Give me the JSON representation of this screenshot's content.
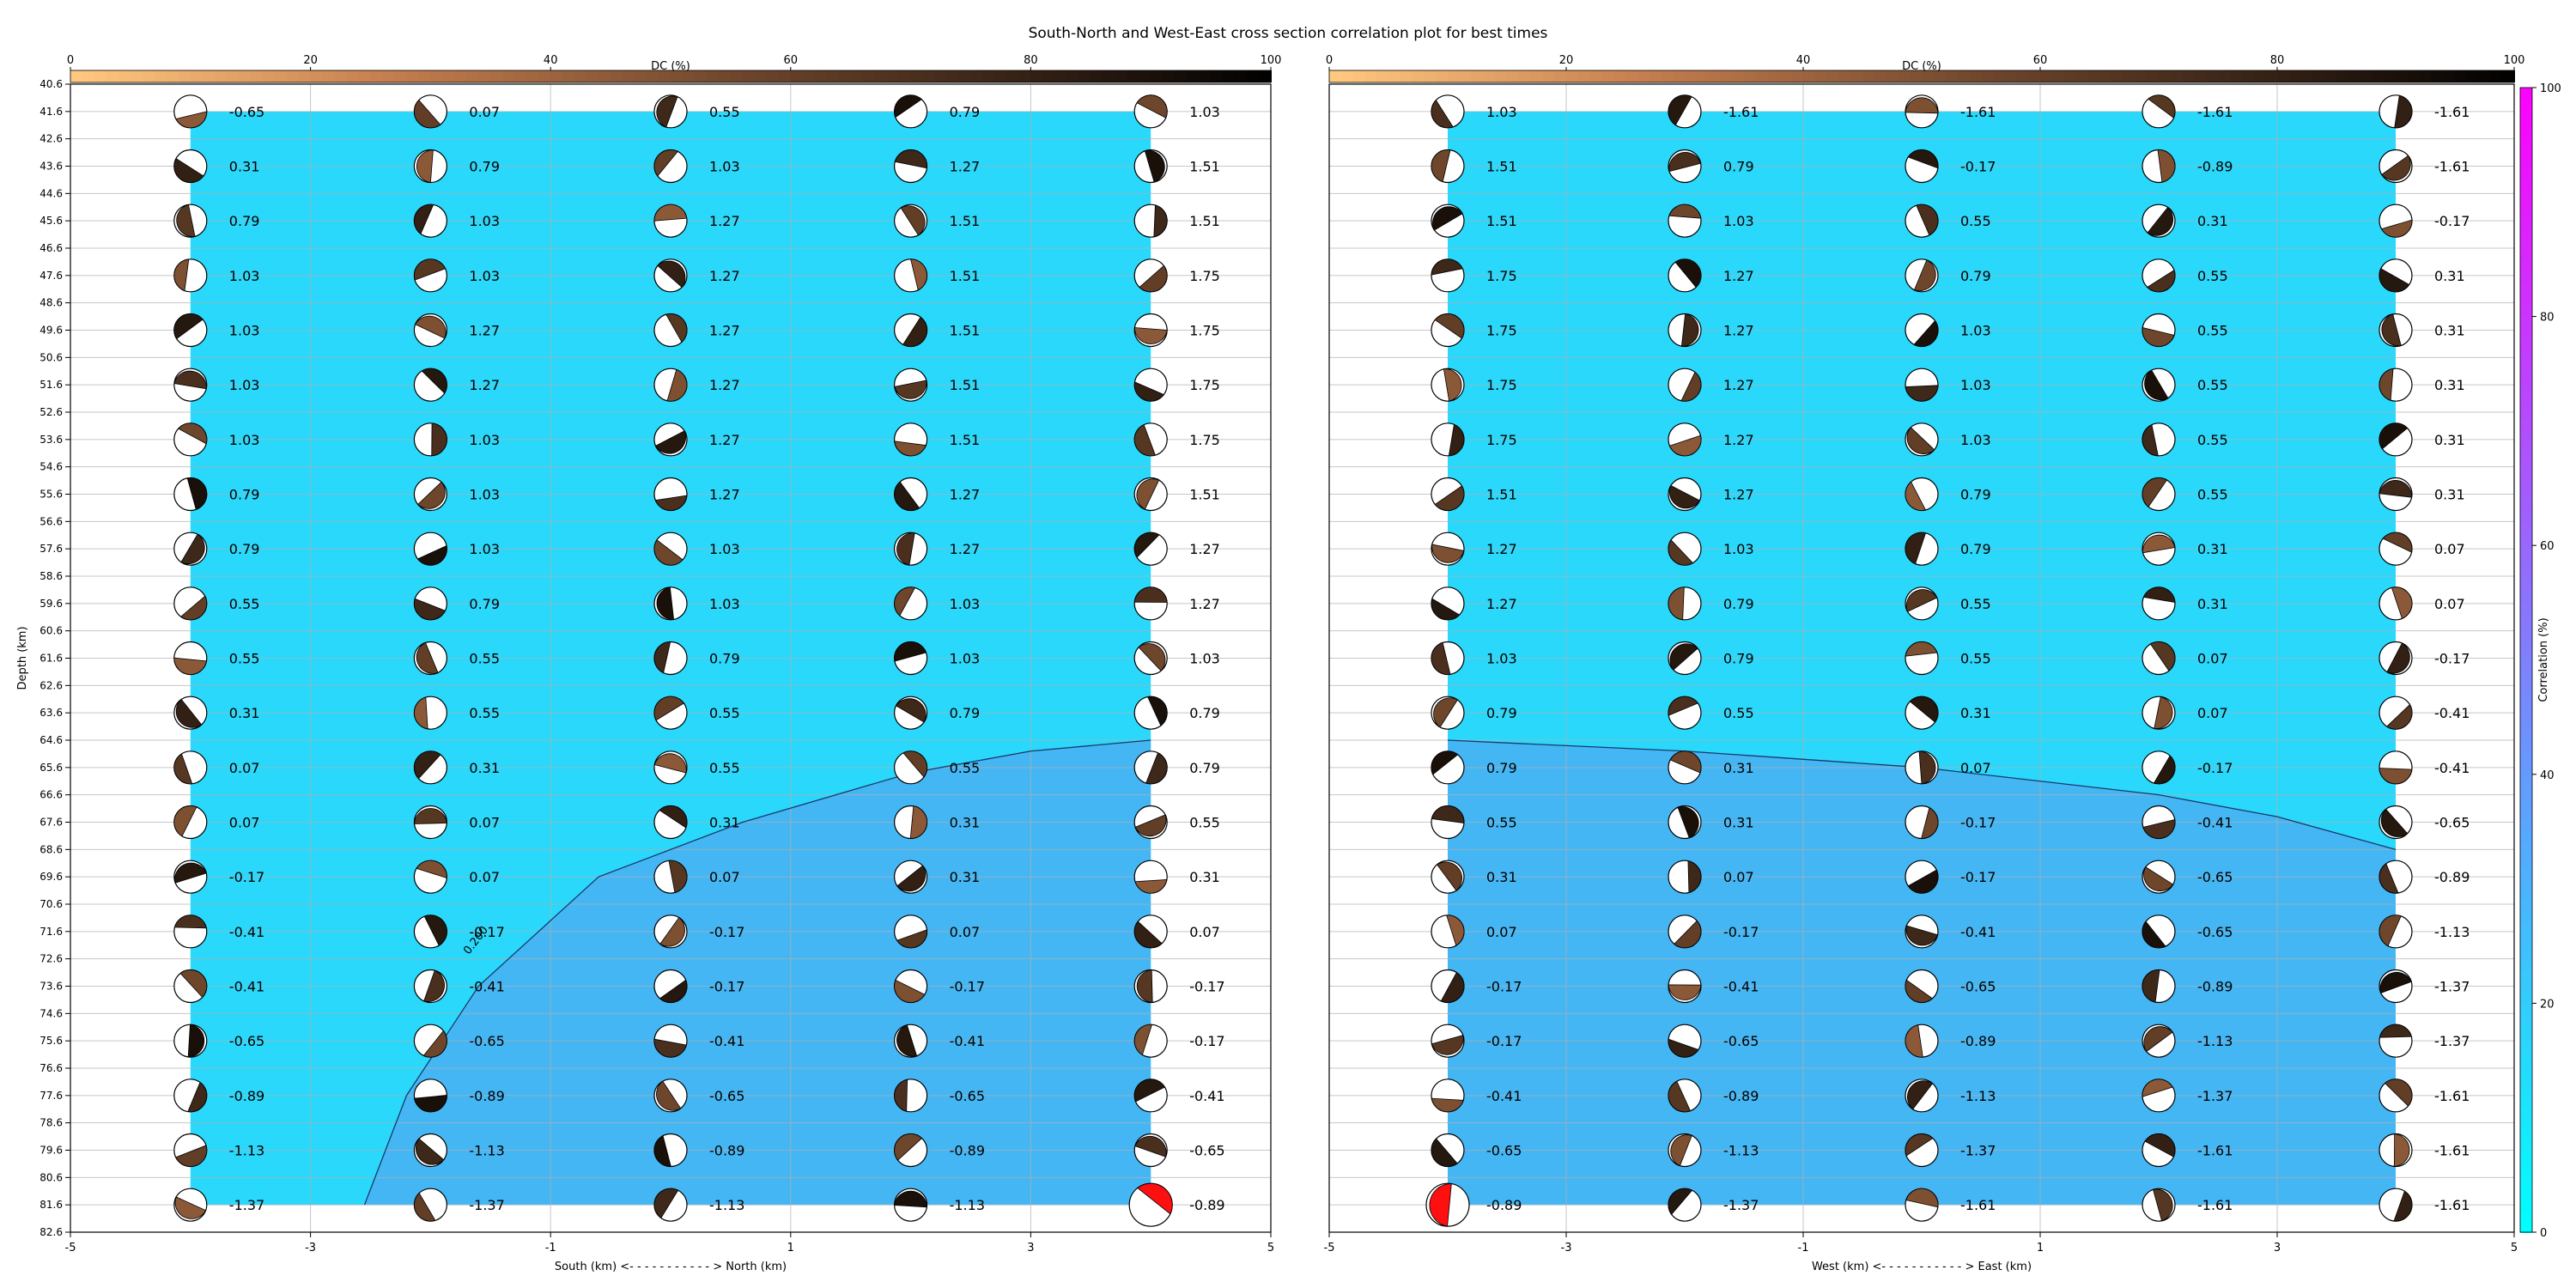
{
  "figure": {
    "title": "South-North and West-East cross section correlation plot for best times"
  },
  "colors": {
    "background": "#ffffff",
    "grid": "#b0b0b0",
    "beach_outline": "#000000"
  },
  "chart_data": [
    {
      "type": "heatmap",
      "panel": "south-north",
      "title": "South-North and West-East cross section correlation plot for best times",
      "xlabel": "South (km) <- - - - - - - - - - - > North (km)",
      "ylabel": "Depth (km)",
      "xlim": [
        -5,
        5
      ],
      "ylim": [
        82.6,
        40.6
      ],
      "x_ticks": [
        -5,
        -3,
        -1,
        1,
        3,
        5
      ],
      "y_ticks": [
        40.6,
        41.6,
        42.6,
        43.6,
        44.6,
        45.6,
        46.6,
        47.6,
        48.6,
        49.6,
        50.6,
        51.6,
        52.6,
        53.6,
        54.6,
        55.6,
        56.6,
        57.6,
        58.6,
        59.6,
        60.6,
        61.6,
        62.6,
        63.6,
        64.6,
        65.6,
        66.6,
        67.6,
        68.6,
        69.6,
        70.6,
        71.6,
        72.6,
        73.6,
        74.6,
        75.6,
        76.6,
        77.6,
        78.6,
        79.6,
        80.6,
        81.6,
        82.6
      ],
      "grid": true,
      "x": [
        -4,
        -2,
        0,
        2,
        4
      ],
      "depths": [
        41.6,
        43.6,
        45.6,
        47.6,
        49.6,
        51.6,
        53.6,
        55.6,
        57.6,
        59.6,
        61.6,
        63.6,
        65.6,
        67.6,
        69.6,
        71.6,
        73.6,
        75.6,
        77.6,
        79.6,
        81.6
      ],
      "time_labels": [
        [
          "-0.65",
          "0.07",
          "0.55",
          "0.79",
          "1.03"
        ],
        [
          "0.31",
          "0.79",
          "1.03",
          "1.27",
          "1.51"
        ],
        [
          "0.79",
          "1.03",
          "1.27",
          "1.51",
          "1.51"
        ],
        [
          "1.03",
          "1.03",
          "1.27",
          "1.51",
          "1.75"
        ],
        [
          "1.03",
          "1.27",
          "1.27",
          "1.51",
          "1.75"
        ],
        [
          "1.03",
          "1.27",
          "1.27",
          "1.51",
          "1.75"
        ],
        [
          "1.03",
          "1.03",
          "1.27",
          "1.51",
          "1.75"
        ],
        [
          "0.79",
          "1.03",
          "1.27",
          "1.27",
          "1.51"
        ],
        [
          "0.79",
          "1.03",
          "1.03",
          "1.27",
          "1.27"
        ],
        [
          "0.55",
          "0.79",
          "1.03",
          "1.03",
          "1.27"
        ],
        [
          "0.55",
          "0.55",
          "0.79",
          "1.03",
          "1.03"
        ],
        [
          "0.31",
          "0.55",
          "0.55",
          "0.79",
          "0.79"
        ],
        [
          "0.07",
          "0.31",
          "0.55",
          "0.55",
          "0.79"
        ],
        [
          "0.07",
          "0.07",
          "0.31",
          "0.31",
          "0.55"
        ],
        [
          "-0.17",
          "0.07",
          "0.07",
          "0.31",
          "0.31"
        ],
        [
          "-0.41",
          "-0.17",
          "-0.17",
          "0.07",
          "0.07"
        ],
        [
          "-0.41",
          "-0.41",
          "-0.17",
          "-0.17",
          "-0.17"
        ],
        [
          "-0.65",
          "-0.65",
          "-0.41",
          "-0.41",
          "-0.17"
        ],
        [
          "-0.89",
          "-0.89",
          "-0.65",
          "-0.65",
          "-0.41"
        ],
        [
          "-1.13",
          "-1.13",
          "-0.89",
          "-0.89",
          "-0.65"
        ],
        [
          "-1.37",
          "-1.37",
          "-1.13",
          "-1.13",
          "-0.89"
        ]
      ],
      "correlation_regions": [
        {
          "level": "above contour",
          "color": "#29d8fb"
        },
        {
          "level": "below contour",
          "color": "#45b6f4"
        }
      ],
      "contour": {
        "label": "0.200",
        "points": [
          [
            -2.55,
            81.6
          ],
          [
            -2.2,
            77.6
          ],
          [
            -1.6,
            73.6
          ],
          [
            -0.6,
            69.6
          ],
          [
            0.6,
            67.6
          ],
          [
            2,
            65.8
          ],
          [
            3,
            65.0
          ],
          [
            4,
            64.6
          ]
        ]
      },
      "bright_beach": {
        "x": 4,
        "depth": 81.6
      },
      "dc_colorbar": {
        "label": "DC (%)",
        "range": [
          0,
          100
        ],
        "ticks": [
          0,
          20,
          40,
          60,
          80,
          100
        ]
      }
    },
    {
      "type": "heatmap",
      "panel": "west-east",
      "xlabel": "West (km) <- - - - - - - - - - - > East (km)",
      "ylabel": "",
      "xlim": [
        -5,
        5
      ],
      "ylim": [
        82.6,
        40.6
      ],
      "x_ticks": [
        -5,
        -3,
        -1,
        1,
        3,
        5
      ],
      "grid": true,
      "x": [
        -4,
        -2,
        0,
        2,
        4
      ],
      "depths": [
        41.6,
        43.6,
        45.6,
        47.6,
        49.6,
        51.6,
        53.6,
        55.6,
        57.6,
        59.6,
        61.6,
        63.6,
        65.6,
        67.6,
        69.6,
        71.6,
        73.6,
        75.6,
        77.6,
        79.6,
        81.6
      ],
      "time_labels": [
        [
          "1.03",
          "-1.61",
          "-1.61",
          "-1.61",
          "-1.61"
        ],
        [
          "1.51",
          "0.79",
          "-0.17",
          "-0.89",
          "-1.61"
        ],
        [
          "1.51",
          "1.03",
          "0.55",
          "0.31",
          "-0.17"
        ],
        [
          "1.75",
          "1.27",
          "0.79",
          "0.55",
          "0.31"
        ],
        [
          "1.75",
          "1.27",
          "1.03",
          "0.55",
          "0.31"
        ],
        [
          "1.75",
          "1.27",
          "1.03",
          "0.55",
          "0.31"
        ],
        [
          "1.75",
          "1.27",
          "1.03",
          "0.55",
          "0.31"
        ],
        [
          "1.51",
          "1.27",
          "0.79",
          "0.55",
          "0.31"
        ],
        [
          "1.27",
          "1.03",
          "0.79",
          "0.31",
          "0.07"
        ],
        [
          "1.27",
          "0.79",
          "0.55",
          "0.31",
          "0.07"
        ],
        [
          "1.03",
          "0.79",
          "0.55",
          "0.07",
          "-0.17"
        ],
        [
          "0.79",
          "0.55",
          "0.31",
          "0.07",
          "-0.41"
        ],
        [
          "0.79",
          "0.31",
          "0.07",
          "-0.17",
          "-0.41"
        ],
        [
          "0.55",
          "0.31",
          "-0.17",
          "-0.41",
          "-0.65"
        ],
        [
          "0.31",
          "0.07",
          "-0.17",
          "-0.65",
          "-0.89"
        ],
        [
          "0.07",
          "-0.17",
          "-0.41",
          "-0.65",
          "-1.13"
        ],
        [
          "-0.17",
          "-0.41",
          "-0.65",
          "-0.89",
          "-1.37"
        ],
        [
          "-0.17",
          "-0.65",
          "-0.89",
          "-1.13",
          "-1.37"
        ],
        [
          "-0.41",
          "-0.89",
          "-1.13",
          "-1.37",
          "-1.61"
        ],
        [
          "-0.65",
          "-1.13",
          "-1.37",
          "-1.61",
          "-1.61"
        ],
        [
          "-0.89",
          "-1.37",
          "-1.61",
          "-1.61",
          "-1.61"
        ]
      ],
      "correlation_regions": [
        {
          "level": "above contour",
          "color": "#29d8fb"
        },
        {
          "level": "below contour",
          "color": "#45b6f4"
        }
      ],
      "contour": {
        "label": "",
        "points": [
          [
            -4,
            64.6
          ],
          [
            -2,
            65.0
          ],
          [
            0,
            65.6
          ],
          [
            2,
            66.6
          ],
          [
            3,
            67.4
          ],
          [
            4,
            68.6
          ]
        ]
      },
      "bright_beach": {
        "x": -4,
        "depth": 81.6
      },
      "dc_colorbar": {
        "label": "DC (%)",
        "range": [
          0,
          100
        ],
        "ticks": [
          0,
          20,
          40,
          60,
          80,
          100
        ]
      }
    }
  ],
  "correlation_colorbar": {
    "label": "Correlation (%)",
    "range": [
      0,
      100
    ],
    "ticks": [
      0,
      20,
      40,
      60,
      80,
      100
    ],
    "colors": [
      "#00ffff",
      "#ff00ff"
    ]
  }
}
